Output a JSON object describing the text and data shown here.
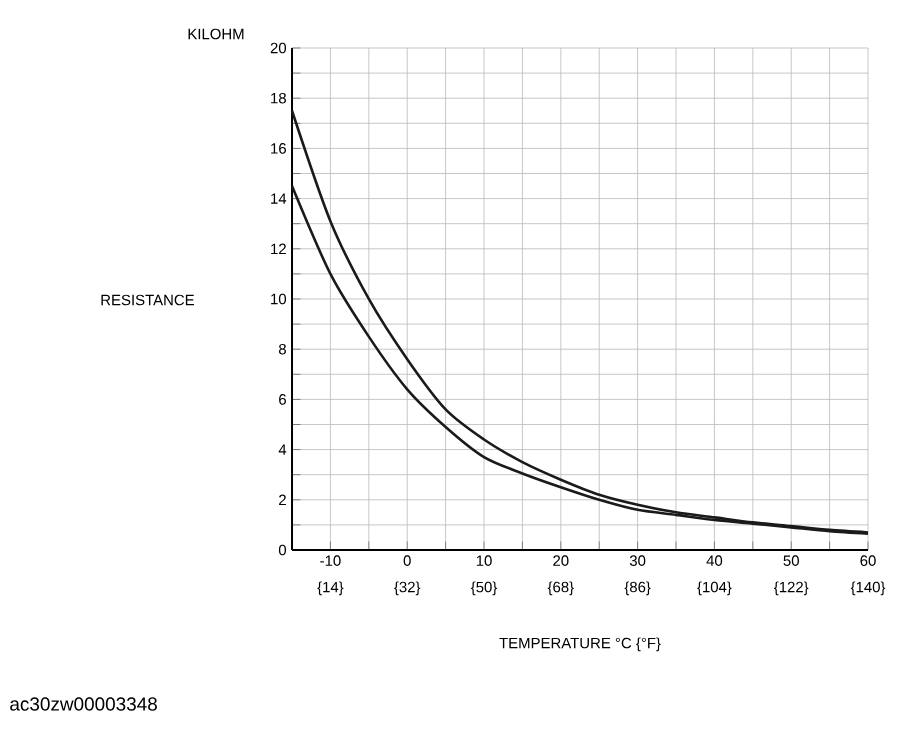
{
  "chart_data": {
    "type": "line",
    "xlabel": "TEMPERATURE    °C {°F}",
    "annotations": [
      "KILOHM",
      "RESISTANCE",
      "ac30zw00003348",
      "{14}",
      "{32}",
      "{50}",
      "{68}",
      "{86}",
      "{104}",
      "{122}",
      "{140}"
    ],
    "x": [
      -15,
      -10,
      -5,
      0,
      5,
      10,
      15,
      20,
      25,
      30,
      35,
      40,
      45,
      50,
      55,
      60
    ],
    "series": [
      {
        "color": "#1a1a1a",
        "values": [
          17.5,
          13.1,
          10.0,
          7.6,
          5.6,
          4.4,
          3.5,
          2.8,
          2.2,
          1.8,
          1.5,
          1.3,
          1.1,
          0.95,
          0.8,
          0.7
        ]
      },
      {
        "color": "#1a1a1a",
        "values": [
          14.5,
          11.0,
          8.5,
          6.4,
          4.9,
          3.7,
          3.05,
          2.5,
          2.0,
          1.6,
          1.4,
          1.2,
          1.05,
          0.9,
          0.75,
          0.65
        ]
      }
    ],
    "xlim": [
      -15,
      60
    ],
    "xticks": [
      -10,
      {
        "value": -5,
        "label": null
      },
      0,
      {
        "value": 5,
        "label": null
      },
      10,
      {
        "value": 15,
        "label": null
      },
      20,
      {
        "value": 25,
        "label": null
      },
      30,
      {
        "value": 35,
        "label": null
      },
      40,
      {
        "value": 45,
        "label": null
      },
      50,
      {
        "value": 55,
        "label": null
      },
      60
    ],
    "ylim": [
      0,
      20
    ],
    "yticks": [
      0,
      {
        "value": 1,
        "label": null
      },
      2,
      {
        "value": 3,
        "label": null
      },
      4,
      {
        "value": 5,
        "label": null
      },
      6,
      {
        "value": 7,
        "label": null
      },
      8,
      {
        "value": 9,
        "label": null
      },
      10,
      {
        "value": 11,
        "label": null
      },
      12,
      {
        "value": 13,
        "label": null
      },
      14,
      {
        "value": 15,
        "label": null
      },
      16,
      {
        "value": 17,
        "label": null
      },
      18,
      {
        "value": 19,
        "label": null
      },
      20
    ],
    "grid": true,
    "marker": "none",
    "line_style": "solid"
  }
}
